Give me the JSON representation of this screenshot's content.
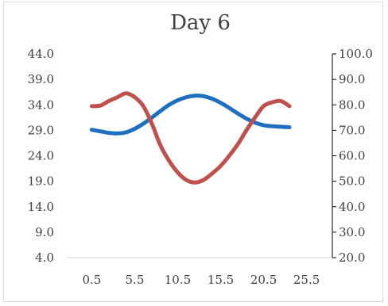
{
  "chart_data": {
    "type": "line",
    "title": "Day 6",
    "xlabel": "",
    "ylabel": "",
    "x_ticks": [
      "0.5",
      "5.5",
      "10.5",
      "15.5",
      "20.5",
      "25.5"
    ],
    "xlim": [
      -2.5,
      28.5
    ],
    "y_left_ticks": [
      "44.0",
      "39.0",
      "34.0",
      "29.0",
      "24.0",
      "19.0",
      "14.0",
      "9.0",
      "4.0"
    ],
    "ylim_left": [
      4,
      44
    ],
    "y_right_ticks": [
      "100.0",
      "90.0",
      "80.0",
      "70.0",
      "60.0",
      "50.0",
      "40.0",
      "30.0",
      "20.0"
    ],
    "ylim_right": [
      20,
      100
    ],
    "grid": false,
    "legend": "none",
    "series": [
      {
        "axis": "left",
        "color": "#1f6fc1",
        "x": [
          0.5,
          1.5,
          2.5,
          3.5,
          4.5,
          5.5,
          6.5,
          7.5,
          8.5,
          9.5,
          10.5,
          11.5,
          12.5,
          13.5,
          14.5,
          15.5,
          16.5,
          17.5,
          18.5,
          19.5,
          20.5,
          21.5,
          22.5,
          23.5
        ],
        "values": [
          29.1,
          28.8,
          28.5,
          28.4,
          28.6,
          29.3,
          30.3,
          31.5,
          32.8,
          34.0,
          34.9,
          35.5,
          35.8,
          35.7,
          35.2,
          34.4,
          33.4,
          32.3,
          31.3,
          30.5,
          30.0,
          29.8,
          29.7,
          29.6
        ]
      },
      {
        "axis": "right",
        "color": "#c0504d",
        "x": [
          0.5,
          1.5,
          2.5,
          3.5,
          4.5,
          5.5,
          6.5,
          7.5,
          8.5,
          9.5,
          10.5,
          11.5,
          12.5,
          13.5,
          14.5,
          15.5,
          16.5,
          17.5,
          18.5,
          19.5,
          20.5,
          21.5,
          22.5,
          23.5
        ],
        "values": [
          79.5,
          79.7,
          81.5,
          83.0,
          84.5,
          83.0,
          79.5,
          72.5,
          64.0,
          58.0,
          53.5,
          50.5,
          49.5,
          50.5,
          53.0,
          56.0,
          60.0,
          64.5,
          70.0,
          75.0,
          79.5,
          81.0,
          81.5,
          79.5
        ]
      }
    ]
  }
}
